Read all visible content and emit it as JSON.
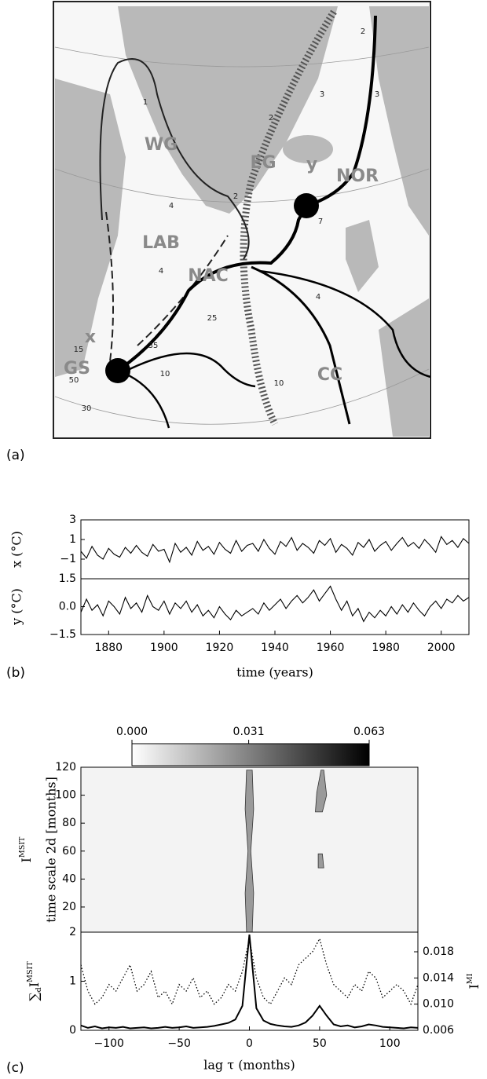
{
  "panel_labels": [
    "(a)",
    "(b)",
    "(c)"
  ],
  "figure_a": {
    "labels": [
      "WG",
      "EG",
      "y",
      "NOR",
      "LAB",
      "NAC",
      "x",
      "GS",
      "CC"
    ],
    "current_labels": [
      "1",
      "4",
      "2",
      "3",
      "3",
      "2",
      "2",
      "7",
      "4",
      "25",
      "15",
      "35",
      "50",
      "10",
      "30",
      "10",
      "4"
    ]
  },
  "chart_data": [
    {
      "type": "line",
      "xlabel": "time (years)",
      "x": [
        1870,
        1872,
        1874,
        1876,
        1878,
        1880,
        1882,
        1884,
        1886,
        1888,
        1890,
        1892,
        1894,
        1896,
        1898,
        1900,
        1902,
        1904,
        1906,
        1908,
        1910,
        1912,
        1914,
        1916,
        1918,
        1920,
        1922,
        1924,
        1926,
        1928,
        1930,
        1932,
        1934,
        1936,
        1938,
        1940,
        1942,
        1944,
        1946,
        1948,
        1950,
        1952,
        1954,
        1956,
        1958,
        1960,
        1962,
        1964,
        1966,
        1968,
        1970,
        1972,
        1974,
        1976,
        1978,
        1980,
        1982,
        1984,
        1986,
        1988,
        1990,
        1992,
        1994,
        1996,
        1998,
        2000,
        2002,
        2004,
        2006,
        2008,
        2010
      ],
      "xlim": [
        1870,
        2010
      ],
      "xticks": [
        1880,
        1900,
        1920,
        1940,
        1960,
        1980,
        2000
      ],
      "color": "#000000",
      "subplots": [
        {
          "ylabel": "x (°C)",
          "ylim": [
            -3,
            3
          ],
          "yticks": [
            {
              "value": -1,
              "label": "−1"
            },
            1,
            3
          ],
          "values": [
            -0.2,
            -0.9,
            0.3,
            -0.6,
            -1.0,
            0.1,
            -0.5,
            -0.8,
            0.2,
            -0.4,
            0.4,
            -0.3,
            -0.7,
            0.5,
            -0.2,
            0.0,
            -1.3,
            0.6,
            -0.3,
            0.2,
            -0.6,
            0.8,
            -0.1,
            0.3,
            -0.5,
            0.7,
            0.0,
            -0.4,
            0.9,
            -0.2,
            0.4,
            0.6,
            -0.2,
            1.0,
            0.1,
            -0.5,
            0.8,
            0.3,
            1.2,
            -0.1,
            0.6,
            0.2,
            -0.4,
            0.9,
            0.4,
            1.1,
            -0.3,
            0.5,
            0.1,
            -0.6,
            0.7,
            0.2,
            1.0,
            -0.2,
            0.4,
            0.8,
            -0.1,
            0.6,
            1.2,
            0.3,
            0.7,
            0.1,
            1.0,
            0.4,
            -0.3,
            1.3,
            0.5,
            0.9,
            0.2,
            1.1,
            0.6
          ]
        },
        {
          "ylabel": "y (°C)",
          "ylim": [
            -1.5,
            1.5
          ],
          "yticks": [
            {
              "value": -1.5,
              "label": "−1.5"
            },
            {
              "value": 0,
              "label": "0.0"
            },
            1.5
          ],
          "values": [
            -0.3,
            0.4,
            -0.2,
            0.1,
            -0.5,
            0.3,
            0.0,
            -0.4,
            0.5,
            -0.1,
            0.2,
            -0.3,
            0.6,
            0.0,
            -0.2,
            0.3,
            -0.4,
            0.2,
            -0.1,
            0.3,
            -0.3,
            0.1,
            -0.5,
            -0.2,
            -0.6,
            0.0,
            -0.4,
            -0.7,
            -0.2,
            -0.5,
            -0.3,
            -0.1,
            -0.4,
            0.2,
            -0.2,
            0.1,
            0.4,
            -0.1,
            0.3,
            0.6,
            0.2,
            0.5,
            0.9,
            0.3,
            0.7,
            1.1,
            0.4,
            -0.2,
            0.3,
            -0.5,
            -0.1,
            -0.8,
            -0.3,
            -0.6,
            -0.2,
            -0.5,
            0.0,
            -0.4,
            0.1,
            -0.3,
            0.2,
            -0.2,
            -0.5,
            0.0,
            0.3,
            -0.1,
            0.4,
            0.2,
            0.6,
            0.3,
            0.5
          ]
        }
      ]
    },
    {
      "type": "contour",
      "ylabel": "time scale 2d [months]",
      "ylabel_main": "I",
      "ylabel_main_sup": "MSIT",
      "xlim": [
        -120,
        120
      ],
      "ylim": [
        2,
        120
      ],
      "yticks": [
        2,
        20,
        40,
        60,
        80,
        100,
        120
      ],
      "clim": [
        0,
        0.063
      ],
      "cticks": [
        {
          "value": 0,
          "label": "0.000"
        },
        0.031,
        0.063
      ],
      "colormap": [
        "#ffffff",
        "#000000"
      ],
      "contour_color": "#9a9a9a",
      "contours": [
        {
          "x": [
            -2,
            2,
            3,
            1,
            3,
            2,
            -2,
            -3,
            -1,
            -3
          ],
          "y": [
            2,
            2,
            30,
            60,
            90,
            118,
            118,
            90,
            60,
            30
          ]
        },
        {
          "x": [
            47,
            52,
            55,
            53,
            51,
            48
          ],
          "y": [
            88,
            88,
            100,
            118,
            118,
            102
          ]
        },
        {
          "x": [
            49,
            53,
            52,
            49
          ],
          "y": [
            48,
            48,
            58,
            58
          ]
        }
      ]
    },
    {
      "type": "line",
      "xlabel": "lag τ (months)",
      "xlim": [
        -120,
        120
      ],
      "xticks": [
        {
          "value": -100,
          "label": "−100"
        },
        {
          "value": -50,
          "label": "−50"
        },
        0,
        50,
        100
      ],
      "x": [
        -120,
        -115,
        -110,
        -105,
        -100,
        -95,
        -90,
        -85,
        -80,
        -75,
        -70,
        -65,
        -60,
        -55,
        -50,
        -45,
        -40,
        -35,
        -30,
        -25,
        -20,
        -15,
        -10,
        -5,
        0,
        5,
        10,
        15,
        20,
        25,
        30,
        35,
        40,
        45,
        50,
        55,
        60,
        65,
        70,
        75,
        80,
        85,
        90,
        95,
        100,
        105,
        110,
        115,
        120
      ],
      "ylim": [
        0,
        2
      ],
      "yticks": [
        0,
        1
      ],
      "ylabel": [
        "∑",
        "d",
        "I",
        "MSIT"
      ],
      "y2lim": [
        0.006,
        0.021
      ],
      "y2ticks": [
        0.006,
        {
          "value": 0.01,
          "label": "0.010"
        },
        0.014,
        0.018
      ],
      "y2label": [
        "I",
        "MI"
      ],
      "series": [
        {
          "color": "#000000",
          "values": [
            0.1,
            0.05,
            0.08,
            0.04,
            0.06,
            0.05,
            0.07,
            0.04,
            0.05,
            0.06,
            0.04,
            0.05,
            0.07,
            0.05,
            0.06,
            0.08,
            0.05,
            0.06,
            0.07,
            0.09,
            0.12,
            0.15,
            0.22,
            0.5,
            1.95,
            0.45,
            0.2,
            0.13,
            0.1,
            0.08,
            0.07,
            0.1,
            0.16,
            0.3,
            0.5,
            0.3,
            0.12,
            0.08,
            0.1,
            0.06,
            0.08,
            0.12,
            0.1,
            0.07,
            0.06,
            0.05,
            0.04,
            0.06,
            0.05
          ]
        },
        {
          "color": "#000000",
          "axis": "y2",
          "style": "dotted",
          "values": [
            0.016,
            0.012,
            0.01,
            0.011,
            0.013,
            0.012,
            0.014,
            0.016,
            0.012,
            0.013,
            0.015,
            0.011,
            0.012,
            0.01,
            0.013,
            0.012,
            0.014,
            0.011,
            0.012,
            0.01,
            0.011,
            0.013,
            0.012,
            0.015,
            0.02,
            0.014,
            0.011,
            0.01,
            0.012,
            0.014,
            0.013,
            0.016,
            0.017,
            0.018,
            0.02,
            0.016,
            0.013,
            0.012,
            0.011,
            0.013,
            0.012,
            0.015,
            0.014,
            0.011,
            0.012,
            0.013,
            0.012,
            0.01,
            0.013
          ]
        }
      ]
    }
  ]
}
